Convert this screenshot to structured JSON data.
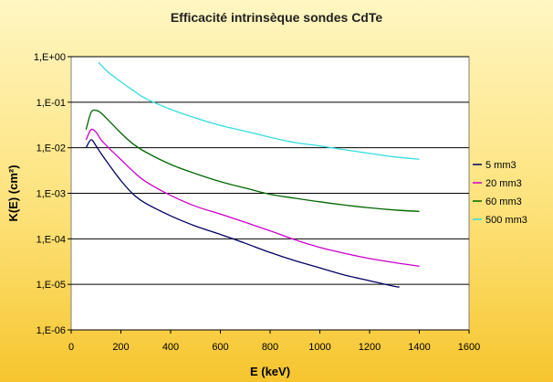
{
  "chart_data": {
    "type": "line",
    "title": "Efficacité intrinsèque sondes CdTe",
    "xlabel": "E (keV)",
    "ylabel": "K(E) (cm²)",
    "xlim": [
      0,
      1600
    ],
    "ylim": [
      1e-06,
      1
    ],
    "y_scale": "log",
    "x_ticks": [
      0,
      200,
      400,
      600,
      800,
      1000,
      1200,
      1400,
      1600
    ],
    "x_tick_labels": [
      "0",
      "200",
      "400",
      "600",
      "800",
      "1000",
      "1200",
      "1400",
      "1600"
    ],
    "y_ticks": [
      1.0,
      0.1,
      0.01,
      0.001,
      0.0001,
      1e-05,
      1e-06
    ],
    "y_tick_labels": [
      "1,E+00",
      "1,E-01",
      "1,E-02",
      "1,E-03",
      "1,E-04",
      "1,E-05",
      "1,E-06"
    ],
    "grid": "horizontal major gridlines",
    "legend_position": "right",
    "plot_background": "#ffffff",
    "series": [
      {
        "name": "5 mm3",
        "color": "#000066",
        "points": [
          [
            60,
            0.01
          ],
          [
            80,
            0.015
          ],
          [
            100,
            0.011
          ],
          [
            120,
            0.0075
          ],
          [
            150,
            0.0044
          ],
          [
            200,
            0.0019
          ],
          [
            250,
            0.00095
          ],
          [
            300,
            0.0006
          ],
          [
            400,
            0.00032
          ],
          [
            500,
            0.00019
          ],
          [
            600,
            0.000125
          ],
          [
            700,
            8e-05
          ],
          [
            800,
            5e-05
          ],
          [
            900,
            3.3e-05
          ],
          [
            1000,
            2.3e-05
          ],
          [
            1100,
            1.6e-05
          ],
          [
            1200,
            1.2e-05
          ],
          [
            1300,
            9e-06
          ],
          [
            1320,
            8.8e-06
          ]
        ]
      },
      {
        "name": "20 mm3",
        "color": "#cc00cc",
        "points": [
          [
            60,
            0.015
          ],
          [
            80,
            0.025
          ],
          [
            100,
            0.022
          ],
          [
            120,
            0.015
          ],
          [
            150,
            0.01
          ],
          [
            200,
            0.0055
          ],
          [
            250,
            0.003
          ],
          [
            300,
            0.0018
          ],
          [
            400,
            0.0009
          ],
          [
            500,
            0.00052
          ],
          [
            600,
            0.00035
          ],
          [
            700,
            0.00023
          ],
          [
            800,
            0.00015
          ],
          [
            900,
            9.5e-05
          ],
          [
            1000,
            6.5e-05
          ],
          [
            1100,
            4.8e-05
          ],
          [
            1200,
            3.7e-05
          ],
          [
            1300,
            3e-05
          ],
          [
            1400,
            2.5e-05
          ]
        ]
      },
      {
        "name": "60 mm3",
        "color": "#006600",
        "points": [
          [
            60,
            0.025
          ],
          [
            80,
            0.06
          ],
          [
            100,
            0.066
          ],
          [
            120,
            0.058
          ],
          [
            150,
            0.04
          ],
          [
            200,
            0.021
          ],
          [
            250,
            0.012
          ],
          [
            300,
            0.008
          ],
          [
            400,
            0.0043
          ],
          [
            500,
            0.0027
          ],
          [
            600,
            0.0018
          ],
          [
            700,
            0.0013
          ],
          [
            800,
            0.00095
          ],
          [
            900,
            0.00078
          ],
          [
            1000,
            0.00065
          ],
          [
            1100,
            0.00055
          ],
          [
            1200,
            0.00048
          ],
          [
            1300,
            0.00043
          ],
          [
            1400,
            0.0004
          ]
        ]
      },
      {
        "name": "500 mm3",
        "color": "#33dddd",
        "points": [
          [
            110,
            0.75
          ],
          [
            150,
            0.45
          ],
          [
            200,
            0.28
          ],
          [
            250,
            0.18
          ],
          [
            300,
            0.12
          ],
          [
            400,
            0.07
          ],
          [
            500,
            0.045
          ],
          [
            600,
            0.031
          ],
          [
            700,
            0.023
          ],
          [
            800,
            0.017
          ],
          [
            900,
            0.013
          ],
          [
            1000,
            0.011
          ],
          [
            1100,
            0.009
          ],
          [
            1200,
            0.0075
          ],
          [
            1300,
            0.0063
          ],
          [
            1400,
            0.0056
          ]
        ]
      }
    ]
  }
}
